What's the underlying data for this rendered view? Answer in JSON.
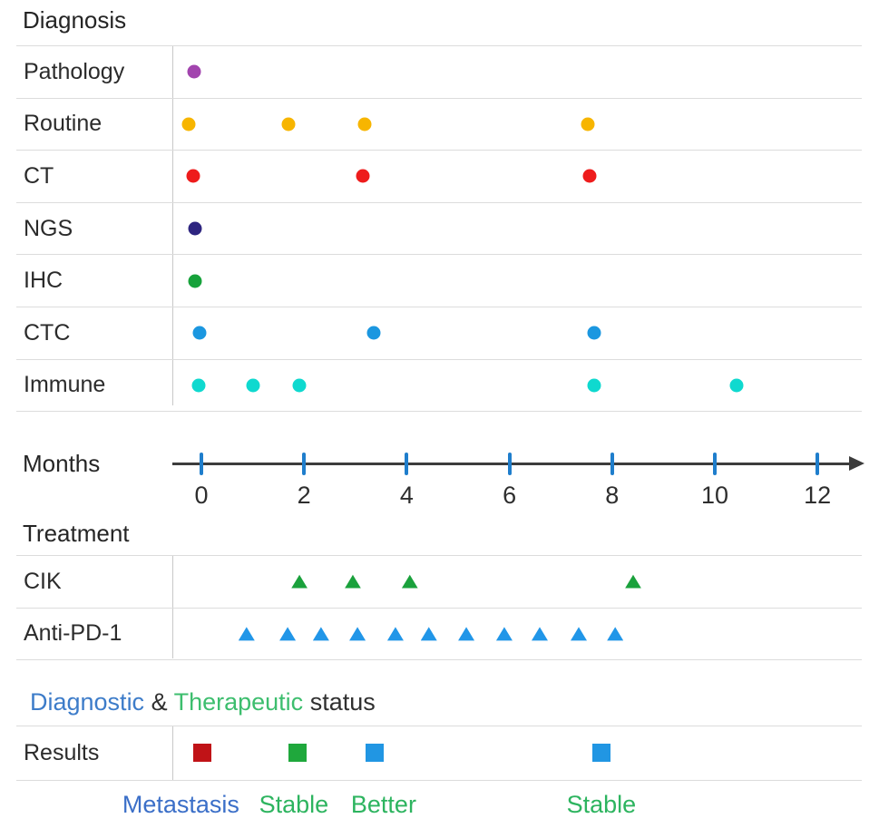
{
  "titles": {
    "diagnosis": "Diagnosis",
    "treatment": "Treatment",
    "results": "Results"
  },
  "status_heading": {
    "segments": [
      {
        "text": "Diagnostic",
        "color": "#3D7CC9"
      },
      {
        "text": " & ",
        "color": "#303030"
      },
      {
        "text": "Therapeutic",
        "color": "#3DBE6E"
      },
      {
        "text": " status",
        "color": "#303030"
      }
    ]
  },
  "chart_data": {
    "type": "scatter",
    "title": "Diagnostic & Therapeutic status timeline",
    "x_axis": {
      "label": "Months",
      "ticks": [
        0,
        2,
        4,
        6,
        8,
        10,
        12
      ],
      "range": [
        0,
        12
      ],
      "tick_color": "#1F7ECC",
      "line_color": "#3C3C3C"
    },
    "sections": {
      "diagnosis": {
        "label": "Diagnosis",
        "rows": [
          {
            "label": "Pathology",
            "marker": "circle",
            "color": "#A244AE",
            "months": [
              -0.15
            ]
          },
          {
            "label": "Routine",
            "marker": "circle",
            "color": "#F7B500",
            "months": [
              -0.25,
              1.7,
              3.18,
              7.53
            ]
          },
          {
            "label": "CT",
            "marker": "circle",
            "color": "#EE1C1C",
            "months": [
              -0.16,
              3.15,
              7.56
            ]
          },
          {
            "label": "NGS",
            "marker": "circle",
            "color": "#2E2580",
            "months": [
              -0.12
            ]
          },
          {
            "label": "IHC",
            "marker": "circle",
            "color": "#17A23B",
            "months": [
              -0.12
            ]
          },
          {
            "label": "CTC",
            "marker": "circle",
            "color": "#1B97E0",
            "months": [
              -0.04,
              3.36,
              7.65
            ]
          },
          {
            "label": "Immune",
            "marker": "circle",
            "color": "#0FD9CF",
            "months": [
              -0.05,
              1.01,
              1.91,
              7.65,
              10.42
            ]
          }
        ]
      },
      "treatment": {
        "label": "Treatment",
        "rows": [
          {
            "label": "CIK",
            "marker": "triangle",
            "color": "#1AA13C",
            "months": [
              1.91,
              2.95,
              4.06,
              8.41
            ]
          },
          {
            "label": "Anti-PD-1",
            "marker": "triangle",
            "color": "#2196E8",
            "months": [
              0.88,
              1.68,
              2.33,
              3.04,
              3.78,
              4.43,
              5.16,
              5.9,
              6.59,
              7.35,
              8.06
            ]
          }
        ]
      },
      "results": {
        "label": "Results",
        "events": [
          {
            "month": 0.02,
            "color": "#C01317",
            "label": "Metastasis",
            "label_color": "#3B6FC8",
            "label_month": -0.4
          },
          {
            "month": 1.87,
            "color": "#1FA83C",
            "label": "Stable",
            "label_color": "#2DB45F",
            "label_month": 1.8
          },
          {
            "month": 3.38,
            "color": "#2196E3",
            "label": "Better",
            "label_color": "#2DB45F",
            "label_month": 3.55
          },
          {
            "month": 7.79,
            "color": "#2196E3",
            "label": "Stable",
            "label_color": "#2DB45F",
            "label_month": 7.79
          }
        ]
      }
    }
  }
}
